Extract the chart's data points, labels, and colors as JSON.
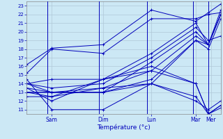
{
  "xlabel": "Température (°c)",
  "background_color": "#cce8f5",
  "plot_bg_color": "#cce8f5",
  "grid_color": "#b0c8d8",
  "line_color": "#0000bb",
  "marker": "+",
  "yticks": [
    11,
    12,
    13,
    14,
    15,
    16,
    17,
    18,
    19,
    20,
    21,
    22,
    23
  ],
  "ylim": [
    10.5,
    23.5
  ],
  "xlim": [
    0.0,
    14.0
  ],
  "day_labels": [
    "Sam",
    "Dim",
    "Lun",
    "Mar",
    "Mer"
  ],
  "day_tick_positions": [
    1.8,
    5.5,
    9.0,
    12.2,
    13.3
  ],
  "day_vline_positions": [
    1.5,
    5.2,
    8.7,
    12.0,
    13.1
  ],
  "series": [
    [
      0.0,
      16.2,
      1.8,
      18.1,
      5.5,
      18.5,
      9.0,
      22.5,
      12.2,
      21.2,
      13.1,
      22.2,
      14.0,
      23.2
    ],
    [
      0.0,
      15.2,
      1.8,
      18.0,
      5.5,
      17.5,
      9.0,
      21.5,
      12.2,
      21.5,
      13.1,
      22.0,
      14.0,
      22.2
    ],
    [
      0.0,
      14.5,
      1.8,
      11.0,
      5.5,
      11.0,
      9.0,
      14.0,
      12.2,
      12.5,
      13.1,
      10.5,
      14.0,
      11.2
    ],
    [
      0.0,
      14.0,
      1.8,
      13.0,
      5.5,
      13.0,
      9.0,
      16.5,
      12.2,
      20.0,
      13.1,
      18.5,
      14.0,
      22.5
    ],
    [
      0.0,
      14.0,
      1.8,
      13.5,
      5.5,
      14.0,
      9.0,
      17.0,
      12.2,
      20.5,
      13.1,
      19.0,
      14.0,
      19.5
    ],
    [
      0.0,
      14.0,
      1.8,
      14.5,
      5.5,
      14.5,
      9.0,
      17.5,
      12.2,
      21.0,
      13.1,
      18.5,
      14.0,
      22.0
    ],
    [
      0.0,
      13.5,
      1.8,
      12.0,
      5.5,
      14.5,
      9.0,
      16.0,
      12.2,
      14.0,
      13.1,
      10.5,
      14.0,
      11.5
    ],
    [
      0.0,
      13.5,
      1.8,
      13.0,
      5.5,
      13.5,
      9.0,
      15.5,
      12.2,
      19.5,
      13.1,
      18.5,
      14.0,
      22.0
    ],
    [
      0.0,
      13.0,
      1.8,
      13.0,
      5.5,
      13.0,
      9.0,
      14.5,
      12.2,
      19.0,
      13.1,
      18.0,
      14.0,
      21.5
    ],
    [
      0.0,
      13.0,
      1.8,
      13.0,
      5.5,
      13.0,
      9.0,
      14.0,
      12.2,
      19.0,
      13.1,
      18.5,
      14.0,
      22.0
    ],
    [
      0.0,
      13.0,
      1.8,
      12.5,
      5.5,
      14.5,
      9.0,
      15.5,
      12.2,
      14.0,
      13.1,
      10.5,
      14.0,
      11.5
    ],
    [
      0.0,
      12.5,
      1.8,
      12.5,
      5.5,
      13.5,
      9.0,
      14.0,
      12.2,
      12.0,
      13.1,
      11.0,
      14.0,
      12.0
    ]
  ]
}
